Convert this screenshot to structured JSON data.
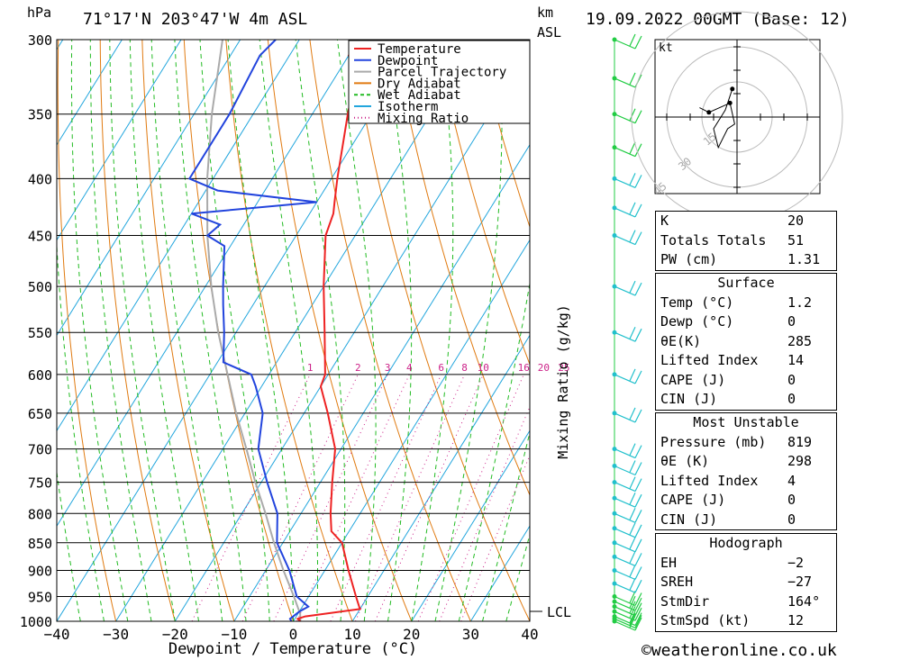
{
  "header": {
    "location": "71°17'N  203°47'W  4m  ASL",
    "datetime": "19.09.2022  00GMT  (Base: 12)",
    "hpa_label": "hPa",
    "km_label": "km",
    "asl_label": "ASL"
  },
  "chart_data": {
    "type": "skew-t log-p sounding",
    "xlabel": "Dewpoint / Temperature (°C)",
    "ylabel_left": "hPa",
    "ylabel_right": "Mixing Ratio (g/kg)",
    "xlim": [
      -40,
      40
    ],
    "ylim": [
      1000,
      300
    ],
    "x_ticks": [
      "−40",
      "−30",
      "−20",
      "−10",
      "0",
      "10",
      "20",
      "30",
      "40"
    ],
    "pressure_levels": [
      300,
      350,
      400,
      450,
      500,
      550,
      600,
      650,
      700,
      750,
      800,
      850,
      900,
      950,
      1000
    ],
    "mixing_ratio_labels": [
      "1",
      "2",
      "3",
      "4",
      "6",
      "8",
      "10",
      "16",
      "20",
      "25"
    ],
    "lcl_label": "LCL",
    "lcl_pressure": 985,
    "legend": [
      {
        "name": "Temperature",
        "color": "#ee2222",
        "style": "solid"
      },
      {
        "name": "Dewpoint",
        "color": "#2244dd",
        "style": "solid"
      },
      {
        "name": "Parcel Trajectory",
        "color": "#aaaaaa",
        "style": "solid"
      },
      {
        "name": "Dry Adiabat",
        "color": "#e07a10",
        "style": "solid"
      },
      {
        "name": "Wet Adiabat",
        "color": "#22bb22",
        "style": "dashed"
      },
      {
        "name": "Isotherm",
        "color": "#22a6dd",
        "style": "solid"
      },
      {
        "name": "Mixing Ratio",
        "color": "#cc2288",
        "style": "dotted"
      }
    ],
    "temperature": [
      [
        1000,
        1.2
      ],
      [
        995,
        0.5
      ],
      [
        990,
        1.5
      ],
      [
        975,
        10
      ],
      [
        950,
        8
      ],
      [
        900,
        4
      ],
      [
        850,
        0
      ],
      [
        830,
        -3
      ],
      [
        800,
        -5
      ],
      [
        750,
        -8
      ],
      [
        700,
        -11
      ],
      [
        650,
        -16
      ],
      [
        615,
        -20
      ],
      [
        600,
        -20.5
      ],
      [
        550,
        -25
      ],
      [
        500,
        -30
      ],
      [
        450,
        -35
      ],
      [
        430,
        -36
      ],
      [
        420,
        -37
      ],
      [
        400,
        -39
      ],
      [
        350,
        -44
      ],
      [
        320,
        -47
      ],
      [
        310,
        -50
      ],
      [
        300,
        -50
      ]
    ],
    "dewpoint": [
      [
        1000,
        -0.3
      ],
      [
        995,
        -0.8
      ],
      [
        980,
        0
      ],
      [
        970,
        1
      ],
      [
        950,
        -2
      ],
      [
        900,
        -6
      ],
      [
        850,
        -11
      ],
      [
        800,
        -14
      ],
      [
        750,
        -19
      ],
      [
        700,
        -24
      ],
      [
        650,
        -27
      ],
      [
        615,
        -31
      ],
      [
        600,
        -33
      ],
      [
        585,
        -39
      ],
      [
        550,
        -42
      ],
      [
        520,
        -45
      ],
      [
        500,
        -47
      ],
      [
        460,
        -51
      ],
      [
        450,
        -55
      ],
      [
        440,
        -54
      ],
      [
        430,
        -60
      ],
      [
        420,
        -40
      ],
      [
        410,
        -58
      ],
      [
        400,
        -64
      ],
      [
        350,
        -64
      ],
      [
        310,
        -65
      ],
      [
        300,
        -64
      ]
    ],
    "parcel": [
      [
        1000,
        1.2
      ],
      [
        985,
        0.4
      ],
      [
        950,
        -2.5
      ],
      [
        900,
        -7
      ],
      [
        850,
        -11.5
      ],
      [
        800,
        -16
      ],
      [
        750,
        -21
      ],
      [
        700,
        -26
      ],
      [
        650,
        -31.5
      ],
      [
        600,
        -37
      ],
      [
        550,
        -43
      ],
      [
        500,
        -49
      ],
      [
        450,
        -55
      ],
      [
        400,
        -61
      ],
      [
        350,
        -67
      ],
      [
        300,
        -73
      ]
    ],
    "wind_barbs_pressure": [
      1000,
      995,
      990,
      980,
      970,
      960,
      950,
      925,
      900,
      875,
      850,
      825,
      800,
      775,
      750,
      725,
      700,
      650,
      600,
      550,
      500,
      450,
      425,
      400,
      375,
      350,
      325,
      300
    ],
    "hodograph": {
      "unit": "kt",
      "ring_labels": [
        "15",
        "30",
        "45"
      ],
      "points": [
        [
          -2,
          -12
        ],
        [
          -5,
          -3
        ],
        [
          -10,
          5
        ],
        [
          -8,
          13
        ],
        [
          -4,
          5
        ],
        [
          -1,
          3
        ],
        [
          -3,
          -6
        ],
        [
          -12,
          -2
        ],
        [
          -16,
          -4
        ]
      ]
    }
  },
  "indices": {
    "k_label": "K",
    "k_value": "20",
    "tt_label": "Totals Totals",
    "tt_value": "51",
    "pw_label": "PW (cm)",
    "pw_value": "1.31"
  },
  "surface": {
    "title": "Surface",
    "temp_label": "Temp (°C)",
    "temp_value": "1.2",
    "dewp_label": "Dewp (°C)",
    "dewp_value": "0",
    "theta_label": "θE(K)",
    "theta_value": "285",
    "li_label": "Lifted Index",
    "li_value": "14",
    "cape_label": "CAPE (J)",
    "cape_value": "0",
    "cin_label": "CIN (J)",
    "cin_value": "0"
  },
  "most_unstable": {
    "title": "Most Unstable",
    "pres_label": "Pressure (mb)",
    "pres_value": "819",
    "theta_label": "θE (K)",
    "theta_value": "298",
    "li_label": "Lifted Index",
    "li_value": "4",
    "cape_label": "CAPE (J)",
    "cape_value": "0",
    "cin_label": "CIN (J)",
    "cin_value": "0"
  },
  "hodograph_table": {
    "title": "Hodograph",
    "eh_label": "EH",
    "eh_value": "−2",
    "sreh_label": "SREH",
    "sreh_value": "−27",
    "dir_label": "StmDir",
    "dir_value": "164°",
    "spd_label": "StmSpd (kt)",
    "spd_value": "12"
  },
  "footer": {
    "credit": "©weatheronline.co.uk"
  }
}
